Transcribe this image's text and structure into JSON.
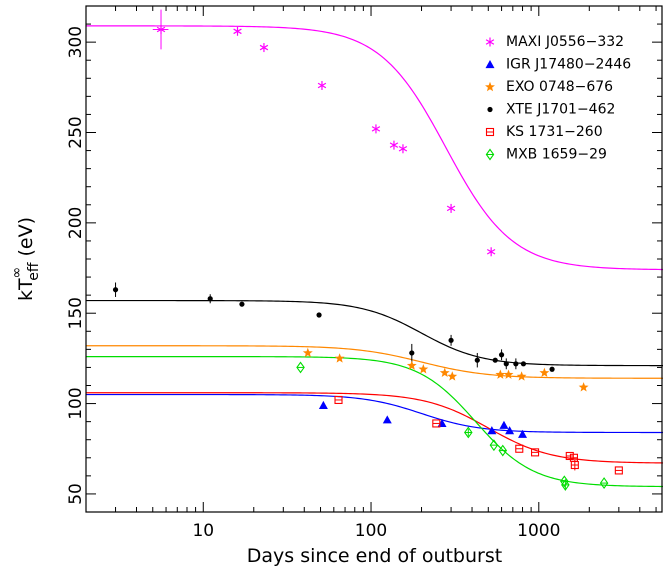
{
  "chart_data": {
    "type": "scatter",
    "xlabel": "Days since end of outburst",
    "ylabel": "kT∞_eff (eV)",
    "xscale": "log",
    "xlim": [
      2,
      5500
    ],
    "ylim": [
      40,
      320
    ],
    "x_ticks": [
      {
        "value": 10,
        "label": "10"
      },
      {
        "value": 100,
        "label": "100"
      },
      {
        "value": 1000,
        "label": "1000"
      }
    ],
    "y_ticks": [
      {
        "value": 50,
        "label": "50"
      },
      {
        "value": 100,
        "label": "100"
      },
      {
        "value": 150,
        "label": "150"
      },
      {
        "value": 200,
        "label": "200"
      },
      {
        "value": 250,
        "label": "250"
      },
      {
        "value": 300,
        "label": "300"
      }
    ],
    "legend_position": "top-right",
    "series": [
      {
        "name": "MAXI J0556−332",
        "color": "#ff00ff",
        "marker": "asterisk",
        "points": [
          {
            "x": 5.6,
            "y": 307,
            "yerr": 11,
            "xerr": 0.6
          },
          {
            "x": 16,
            "y": 306
          },
          {
            "x": 23,
            "y": 297
          },
          {
            "x": 51,
            "y": 276
          },
          {
            "x": 107,
            "y": 252
          },
          {
            "x": 137,
            "y": 243
          },
          {
            "x": 155,
            "y": 241
          },
          {
            "x": 300,
            "y": 208
          },
          {
            "x": 520,
            "y": 184
          }
        ],
        "fit": {
          "high": 309,
          "low": 174,
          "t0": 280,
          "k": 2.2
        }
      },
      {
        "name": "IGR J17480−2446",
        "color": "#0000ff",
        "marker": "triangle",
        "points": [
          {
            "x": 52,
            "y": 99
          },
          {
            "x": 125,
            "y": 91
          },
          {
            "x": 265,
            "y": 89
          },
          {
            "x": 525,
            "y": 85
          },
          {
            "x": 620,
            "y": 88
          },
          {
            "x": 670,
            "y": 85
          },
          {
            "x": 800,
            "y": 83
          }
        ],
        "fit": {
          "high": 105,
          "low": 84,
          "t0": 200,
          "k": 2.5
        }
      },
      {
        "name": "EXO 0748−676",
        "color": "#ff8800",
        "marker": "star",
        "points": [
          {
            "x": 42,
            "y": 128
          },
          {
            "x": 65,
            "y": 125
          },
          {
            "x": 175,
            "y": 121
          },
          {
            "x": 205,
            "y": 119
          },
          {
            "x": 275,
            "y": 117
          },
          {
            "x": 305,
            "y": 115
          },
          {
            "x": 590,
            "y": 116
          },
          {
            "x": 660,
            "y": 116
          },
          {
            "x": 790,
            "y": 115
          },
          {
            "x": 1080,
            "y": 117
          },
          {
            "x": 1850,
            "y": 109
          }
        ],
        "fit": {
          "high": 132,
          "low": 114,
          "t0": 200,
          "k": 2.2
        }
      },
      {
        "name": "XTE J1701−462",
        "color": "#000000",
        "marker": "dot",
        "points": [
          {
            "x": 3,
            "y": 163,
            "yerr": 4
          },
          {
            "x": 11,
            "y": 158,
            "yerr": 2.5
          },
          {
            "x": 17,
            "y": 155
          },
          {
            "x": 49,
            "y": 149
          },
          {
            "x": 175,
            "y": 128,
            "yerr": 5
          },
          {
            "x": 300,
            "y": 135,
            "yerr": 3
          },
          {
            "x": 430,
            "y": 124,
            "yerr": 4
          },
          {
            "x": 550,
            "y": 124
          },
          {
            "x": 600,
            "y": 127,
            "yerr": 3
          },
          {
            "x": 640,
            "y": 122,
            "yerr": 3
          },
          {
            "x": 730,
            "y": 122,
            "yerr": 3
          },
          {
            "x": 810,
            "y": 122
          },
          {
            "x": 1200,
            "y": 119
          }
        ],
        "fit": {
          "high": 157,
          "low": 121,
          "t0": 200,
          "k": 2.4
        }
      },
      {
        "name": "KS 1731−260",
        "color": "#ff0000",
        "marker": "square",
        "points": [
          {
            "x": 64,
            "y": 102
          },
          {
            "x": 245,
            "y": 89
          },
          {
            "x": 765,
            "y": 75
          },
          {
            "x": 950,
            "y": 73
          },
          {
            "x": 1530,
            "y": 71
          },
          {
            "x": 1620,
            "y": 70
          },
          {
            "x": 1640,
            "y": 66,
            "yerr": 3
          },
          {
            "x": 3000,
            "y": 63
          }
        ],
        "fit": {
          "high": 106,
          "low": 67,
          "t0": 500,
          "k": 2.3
        }
      },
      {
        "name": "MXB 1659−29",
        "color": "#00dd00",
        "marker": "diamond",
        "points": [
          {
            "x": 38,
            "y": 120
          },
          {
            "x": 380,
            "y": 84,
            "yerr": 2
          },
          {
            "x": 540,
            "y": 77
          },
          {
            "x": 610,
            "y": 74
          },
          {
            "x": 1420,
            "y": 57
          },
          {
            "x": 1440,
            "y": 55,
            "yerr": 3
          },
          {
            "x": 2450,
            "y": 56
          }
        ],
        "fit": {
          "high": 126,
          "low": 54,
          "t0": 420,
          "k": 2.5
        }
      }
    ]
  }
}
